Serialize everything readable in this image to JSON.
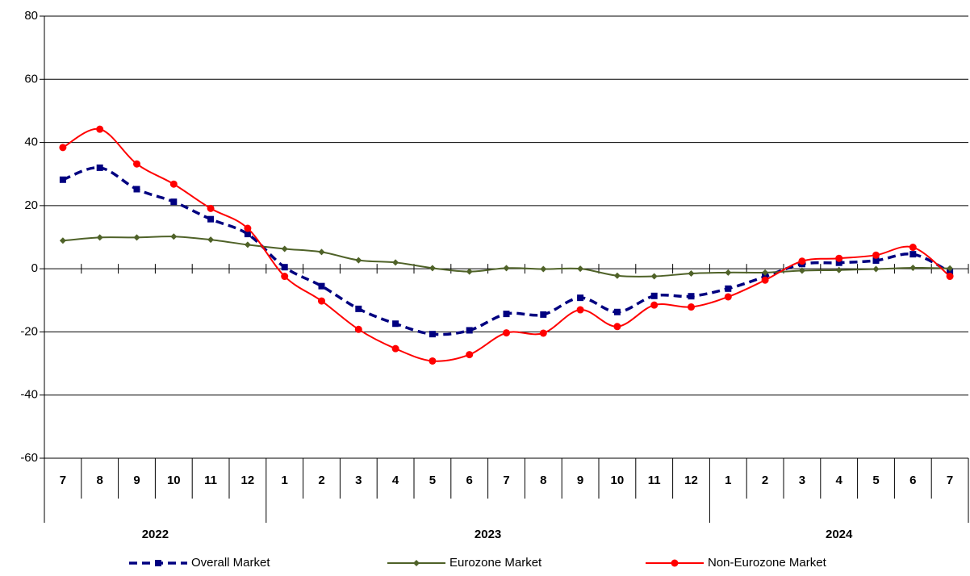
{
  "chart_data": {
    "type": "line",
    "categories": [
      "7",
      "8",
      "9",
      "10",
      "11",
      "12",
      "1",
      "2",
      "3",
      "4",
      "5",
      "6",
      "7",
      "8",
      "9",
      "10",
      "11",
      "12",
      "1",
      "2",
      "3",
      "4",
      "5",
      "6",
      "7"
    ],
    "category_years": [
      "2022",
      "2022",
      "2022",
      "2022",
      "2022",
      "2022",
      "2023",
      "2023",
      "2023",
      "2023",
      "2023",
      "2023",
      "2023",
      "2023",
      "2023",
      "2023",
      "2023",
      "2023",
      "2024",
      "2024",
      "2024",
      "2024",
      "2024",
      "2024",
      "2024"
    ],
    "series": [
      {
        "name": "Overall Market",
        "color": "#000080",
        "line_style": "dashed",
        "marker": "square",
        "values": [
          28.2,
          32,
          25.2,
          21.2,
          15.7,
          11,
          0.5,
          -5.5,
          -12.7,
          -17.4,
          -20.7,
          -19.5,
          -14.3,
          -14.5,
          -9.2,
          -13.7,
          -8.6,
          -8.7,
          -6.3,
          -2.5,
          1.5,
          1.9,
          2.6,
          4.6,
          -1
        ]
      },
      {
        "name": "Eurozone Market",
        "color": "#4f6228",
        "line_style": "solid",
        "marker": "diamond",
        "values": [
          8.9,
          9.9,
          9.9,
          10.2,
          9.2,
          7.6,
          6.3,
          5.3,
          2.7,
          2.0,
          0.2,
          -0.9,
          0.2,
          -0.1,
          0,
          -2.2,
          -2.4,
          -1.5,
          -1.2,
          -1.2,
          -0.6,
          -0.4,
          -0.1,
          0.3,
          0.1
        ]
      },
      {
        "name": "Non-Eurozone Market",
        "color": "#ff0000",
        "line_style": "solid",
        "marker": "circle",
        "values": [
          38.4,
          44.2,
          33.2,
          26.8,
          19.1,
          12.8,
          -2.4,
          -10.2,
          -19.2,
          -25.3,
          -29.2,
          -27.2,
          -20.3,
          -20.4,
          -13,
          -18.3,
          -11.5,
          -12.1,
          -8.9,
          -3.6,
          2.4,
          3.3,
          4.3,
          6.8,
          -2.4
        ]
      }
    ],
    "ylim": [
      -60,
      80
    ],
    "yticks": [
      -60,
      -40,
      -20,
      0,
      20,
      40,
      60,
      80
    ],
    "grid": true,
    "legend": "bottom"
  }
}
